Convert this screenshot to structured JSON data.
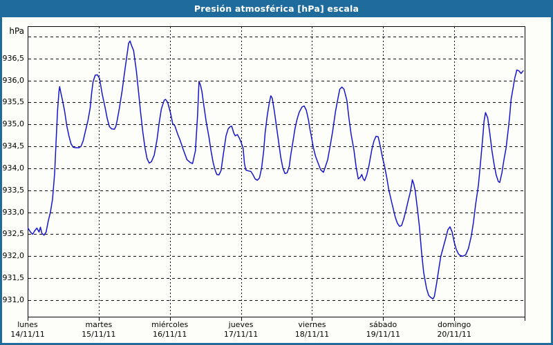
{
  "window": {
    "title": "Presión atmosférica [hPa] escala"
  },
  "colors": {
    "titlebar": "#1e6b9c",
    "window_border": "#1e6b9c",
    "plot_background": "#fdfdfa",
    "grid": "#000000",
    "line": "#1414cc"
  },
  "chart_data": {
    "type": "line",
    "title": "Presión atmosférica [hPa] escala",
    "ylabel": "hPa",
    "xlabel": "",
    "grid": "dashed",
    "legend": "none",
    "ylim": [
      930.6,
      937.25
    ],
    "x_range_days": [
      0,
      7
    ],
    "ygrid": [
      931.0,
      931.5,
      932.0,
      932.5,
      933.0,
      933.5,
      934.0,
      934.5,
      935.0,
      935.5,
      936.0,
      936.5,
      937.0
    ],
    "yticks": [
      {
        "value": 931.0,
        "label": "931,0"
      },
      {
        "value": 931.5,
        "label": "931,5"
      },
      {
        "value": 932.0,
        "label": "932,0"
      },
      {
        "value": 932.5,
        "label": "932,5"
      },
      {
        "value": 933.0,
        "label": "933,0"
      },
      {
        "value": 933.5,
        "label": "933,5"
      },
      {
        "value": 934.0,
        "label": "934,0"
      },
      {
        "value": 934.5,
        "label": "934,5"
      },
      {
        "value": 935.0,
        "label": "935,0"
      },
      {
        "value": 935.5,
        "label": "935,5"
      },
      {
        "value": 936.0,
        "label": "936,0"
      },
      {
        "value": 936.5,
        "label": "936,5"
      }
    ],
    "days": [
      {
        "name": "lunes",
        "date": "14/11/11"
      },
      {
        "name": "martes",
        "date": "15/11/11"
      },
      {
        "name": "miércoles",
        "date": "16/11/11"
      },
      {
        "name": "jueves",
        "date": "17/11/11"
      },
      {
        "name": "viernes",
        "date": "18/11/11"
      },
      {
        "name": "sábado",
        "date": "19/11/11"
      },
      {
        "name": "domingo",
        "date": "20/11/11"
      }
    ],
    "series": [
      {
        "name": "Presión atmosférica",
        "unit": "hPa",
        "points": [
          [
            0.0,
            932.65
          ],
          [
            0.04,
            932.55
          ],
          [
            0.07,
            932.5
          ],
          [
            0.1,
            932.58
          ],
          [
            0.13,
            932.64
          ],
          [
            0.16,
            932.55
          ],
          [
            0.18,
            932.66
          ],
          [
            0.2,
            932.52
          ],
          [
            0.23,
            932.48
          ],
          [
            0.26,
            932.55
          ],
          [
            0.29,
            932.8
          ],
          [
            0.32,
            933.0
          ],
          [
            0.35,
            933.3
          ],
          [
            0.38,
            933.9
          ],
          [
            0.4,
            934.6
          ],
          [
            0.42,
            935.3
          ],
          [
            0.44,
            935.75
          ],
          [
            0.45,
            935.86
          ],
          [
            0.47,
            935.7
          ],
          [
            0.49,
            935.55
          ],
          [
            0.52,
            935.3
          ],
          [
            0.55,
            934.97
          ],
          [
            0.58,
            934.74
          ],
          [
            0.61,
            934.56
          ],
          [
            0.64,
            934.48
          ],
          [
            0.68,
            934.47
          ],
          [
            0.72,
            934.47
          ],
          [
            0.75,
            934.5
          ],
          [
            0.78,
            934.62
          ],
          [
            0.81,
            934.83
          ],
          [
            0.85,
            935.1
          ],
          [
            0.88,
            935.38
          ],
          [
            0.9,
            935.72
          ],
          [
            0.92,
            935.97
          ],
          [
            0.95,
            936.12
          ],
          [
            0.98,
            936.13
          ],
          [
            1.01,
            936.05
          ],
          [
            1.05,
            935.68
          ],
          [
            1.09,
            935.38
          ],
          [
            1.12,
            935.13
          ],
          [
            1.15,
            934.95
          ],
          [
            1.18,
            934.9
          ],
          [
            1.22,
            934.89
          ],
          [
            1.24,
            934.95
          ],
          [
            1.26,
            935.1
          ],
          [
            1.29,
            935.37
          ],
          [
            1.33,
            935.78
          ],
          [
            1.36,
            936.15
          ],
          [
            1.39,
            936.5
          ],
          [
            1.42,
            936.85
          ],
          [
            1.44,
            936.9
          ],
          [
            1.46,
            936.8
          ],
          [
            1.49,
            936.68
          ],
          [
            1.53,
            936.2
          ],
          [
            1.56,
            935.73
          ],
          [
            1.59,
            935.26
          ],
          [
            1.62,
            934.83
          ],
          [
            1.65,
            934.47
          ],
          [
            1.68,
            934.22
          ],
          [
            1.71,
            934.12
          ],
          [
            1.74,
            934.15
          ],
          [
            1.78,
            934.3
          ],
          [
            1.82,
            934.66
          ],
          [
            1.85,
            935.04
          ],
          [
            1.88,
            935.35
          ],
          [
            1.92,
            935.55
          ],
          [
            1.94,
            935.57
          ],
          [
            1.97,
            935.5
          ],
          [
            2.01,
            935.26
          ],
          [
            2.04,
            935.02
          ],
          [
            2.07,
            934.97
          ],
          [
            2.11,
            934.78
          ],
          [
            2.14,
            934.66
          ],
          [
            2.19,
            934.42
          ],
          [
            2.24,
            934.2
          ],
          [
            2.29,
            934.13
          ],
          [
            2.32,
            934.11
          ],
          [
            2.36,
            934.4
          ],
          [
            2.39,
            935.2
          ],
          [
            2.41,
            935.98
          ],
          [
            2.43,
            935.9
          ],
          [
            2.45,
            935.76
          ],
          [
            2.48,
            935.41
          ],
          [
            2.51,
            935.07
          ],
          [
            2.55,
            934.71
          ],
          [
            2.58,
            934.39
          ],
          [
            2.61,
            934.12
          ],
          [
            2.64,
            933.95
          ],
          [
            2.66,
            933.86
          ],
          [
            2.69,
            933.85
          ],
          [
            2.72,
            933.95
          ],
          [
            2.75,
            934.3
          ],
          [
            2.79,
            934.74
          ],
          [
            2.82,
            934.9
          ],
          [
            2.85,
            934.95
          ],
          [
            2.87,
            934.96
          ],
          [
            2.9,
            934.8
          ],
          [
            2.92,
            934.74
          ],
          [
            2.95,
            934.77
          ],
          [
            2.98,
            934.68
          ],
          [
            3.0,
            934.6
          ],
          [
            3.03,
            934.46
          ],
          [
            3.05,
            934.1
          ],
          [
            3.07,
            933.96
          ],
          [
            3.11,
            933.94
          ],
          [
            3.14,
            933.93
          ],
          [
            3.17,
            933.85
          ],
          [
            3.2,
            933.76
          ],
          [
            3.23,
            933.73
          ],
          [
            3.26,
            933.78
          ],
          [
            3.29,
            934.0
          ],
          [
            3.32,
            934.4
          ],
          [
            3.34,
            934.8
          ],
          [
            3.37,
            935.2
          ],
          [
            3.4,
            935.5
          ],
          [
            3.42,
            935.65
          ],
          [
            3.44,
            935.6
          ],
          [
            3.47,
            935.3
          ],
          [
            3.5,
            934.95
          ],
          [
            3.53,
            934.6
          ],
          [
            3.56,
            934.25
          ],
          [
            3.59,
            934.0
          ],
          [
            3.62,
            933.88
          ],
          [
            3.65,
            933.9
          ],
          [
            3.68,
            934.05
          ],
          [
            3.7,
            934.3
          ],
          [
            3.73,
            934.6
          ],
          [
            3.76,
            934.9
          ],
          [
            3.79,
            935.12
          ],
          [
            3.82,
            935.28
          ],
          [
            3.86,
            935.4
          ],
          [
            3.89,
            935.42
          ],
          [
            3.92,
            935.32
          ],
          [
            3.95,
            935.1
          ],
          [
            3.97,
            934.9
          ],
          [
            3.99,
            934.73
          ],
          [
            4.02,
            934.46
          ],
          [
            4.05,
            934.27
          ],
          [
            4.08,
            934.14
          ],
          [
            4.12,
            933.97
          ],
          [
            4.16,
            933.91
          ],
          [
            4.19,
            934.05
          ],
          [
            4.22,
            934.2
          ],
          [
            4.26,
            934.56
          ],
          [
            4.29,
            934.85
          ],
          [
            4.33,
            935.3
          ],
          [
            4.36,
            935.56
          ],
          [
            4.39,
            935.8
          ],
          [
            4.42,
            935.85
          ],
          [
            4.45,
            935.8
          ],
          [
            4.49,
            935.55
          ],
          [
            4.52,
            935.13
          ],
          [
            4.55,
            934.77
          ],
          [
            4.59,
            934.41
          ],
          [
            4.62,
            934.03
          ],
          [
            4.65,
            933.76
          ],
          [
            4.68,
            933.8
          ],
          [
            4.7,
            933.86
          ],
          [
            4.72,
            933.76
          ],
          [
            4.74,
            933.72
          ],
          [
            4.77,
            933.85
          ],
          [
            4.8,
            934.06
          ],
          [
            4.84,
            934.42
          ],
          [
            4.87,
            934.62
          ],
          [
            4.9,
            934.73
          ],
          [
            4.93,
            934.72
          ],
          [
            4.96,
            934.5
          ],
          [
            4.99,
            934.25
          ],
          [
            5.02,
            934.05
          ],
          [
            5.05,
            933.8
          ],
          [
            5.08,
            933.51
          ],
          [
            5.12,
            933.23
          ],
          [
            5.17,
            932.89
          ],
          [
            5.2,
            932.75
          ],
          [
            5.23,
            932.68
          ],
          [
            5.26,
            932.7
          ],
          [
            5.29,
            932.85
          ],
          [
            5.32,
            933.04
          ],
          [
            5.35,
            933.25
          ],
          [
            5.38,
            933.45
          ],
          [
            5.4,
            933.62
          ],
          [
            5.41,
            933.74
          ],
          [
            5.43,
            933.65
          ],
          [
            5.45,
            933.5
          ],
          [
            5.48,
            933.1
          ],
          [
            5.51,
            932.68
          ],
          [
            5.54,
            932.1
          ],
          [
            5.57,
            931.63
          ],
          [
            5.61,
            931.27
          ],
          [
            5.64,
            931.11
          ],
          [
            5.67,
            931.06
          ],
          [
            5.7,
            931.03
          ],
          [
            5.72,
            931.08
          ],
          [
            5.75,
            931.36
          ],
          [
            5.78,
            931.68
          ],
          [
            5.81,
            931.99
          ],
          [
            5.85,
            932.23
          ],
          [
            5.88,
            932.41
          ],
          [
            5.91,
            932.6
          ],
          [
            5.94,
            932.67
          ],
          [
            5.97,
            932.55
          ],
          [
            6.0,
            932.32
          ],
          [
            6.03,
            932.15
          ],
          [
            6.06,
            932.05
          ],
          [
            6.08,
            932.02
          ],
          [
            6.12,
            932.0
          ],
          [
            6.16,
            932.03
          ],
          [
            6.2,
            932.18
          ],
          [
            6.24,
            932.46
          ],
          [
            6.27,
            932.77
          ],
          [
            6.3,
            933.17
          ],
          [
            6.34,
            933.62
          ],
          [
            6.37,
            934.14
          ],
          [
            6.4,
            934.69
          ],
          [
            6.42,
            935.08
          ],
          [
            6.44,
            935.27
          ],
          [
            6.47,
            935.15
          ],
          [
            6.5,
            934.8
          ],
          [
            6.53,
            934.4
          ],
          [
            6.56,
            934.1
          ],
          [
            6.59,
            933.85
          ],
          [
            6.62,
            933.7
          ],
          [
            6.64,
            933.68
          ],
          [
            6.67,
            933.9
          ],
          [
            6.7,
            934.2
          ],
          [
            6.73,
            934.47
          ],
          [
            6.76,
            934.89
          ],
          [
            6.78,
            935.2
          ],
          [
            6.8,
            935.57
          ],
          [
            6.83,
            935.85
          ],
          [
            6.85,
            936.05
          ],
          [
            6.88,
            936.24
          ],
          [
            6.91,
            936.22
          ],
          [
            6.94,
            936.16
          ],
          [
            6.97,
            936.22
          ]
        ]
      }
    ]
  }
}
